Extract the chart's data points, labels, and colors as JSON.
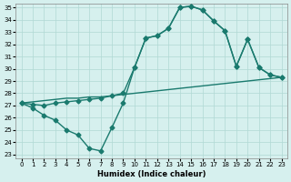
{
  "line1_x": [
    0,
    1,
    2,
    3,
    4,
    5,
    6,
    7,
    8,
    9,
    10,
    11,
    12,
    13,
    14,
    15,
    16,
    17,
    18,
    19,
    20,
    21,
    22,
    23
  ],
  "line1_y": [
    27.2,
    26.8,
    26.2,
    25.8,
    25.0,
    24.6,
    23.5,
    23.3,
    25.2,
    27.2,
    30.1,
    32.5,
    32.7,
    33.3,
    35.0,
    35.1,
    34.8,
    33.9,
    33.1,
    30.2,
    32.4,
    30.1,
    29.5,
    29.3
  ],
  "line2_x": [
    0,
    1,
    2,
    3,
    4,
    5,
    6,
    7,
    8,
    9,
    10,
    11,
    12,
    13,
    14,
    15,
    16,
    17,
    18,
    19,
    20,
    21,
    22,
    23
  ],
  "line2_y": [
    27.2,
    27.1,
    27.0,
    27.2,
    27.3,
    27.4,
    27.5,
    27.6,
    27.8,
    28.0,
    30.1,
    32.5,
    32.7,
    33.3,
    35.0,
    35.1,
    34.8,
    33.9,
    33.1,
    30.2,
    32.4,
    30.1,
    29.5,
    29.3
  ],
  "line3_x": [
    0,
    1,
    2,
    3,
    4,
    5,
    6,
    7,
    8,
    9,
    10,
    11,
    12,
    13,
    14,
    15,
    16,
    17,
    18,
    19,
    20,
    21,
    22,
    23
  ],
  "line3_y": [
    27.2,
    27.3,
    27.4,
    27.5,
    27.6,
    27.6,
    27.7,
    27.7,
    27.8,
    27.9,
    28.0,
    28.1,
    28.2,
    28.3,
    28.4,
    28.5,
    28.6,
    28.7,
    28.8,
    28.9,
    29.0,
    29.1,
    29.2,
    29.3
  ],
  "color": "#1a7a6e",
  "bg_color": "#d6f0ee",
  "grid_color": "#b0d8d4",
  "xlabel": "Humidex (Indice chaleur)",
  "ylim": [
    23,
    35
  ],
  "xlim": [
    0,
    23
  ],
  "yticks": [
    23,
    24,
    25,
    26,
    27,
    28,
    29,
    30,
    31,
    32,
    33,
    34,
    35
  ],
  "xticks": [
    0,
    1,
    2,
    3,
    4,
    5,
    6,
    7,
    8,
    9,
    10,
    11,
    12,
    13,
    14,
    15,
    16,
    17,
    18,
    19,
    20,
    21,
    22,
    23
  ],
  "marker": "D",
  "markersize": 2.5,
  "linewidth": 1.0
}
